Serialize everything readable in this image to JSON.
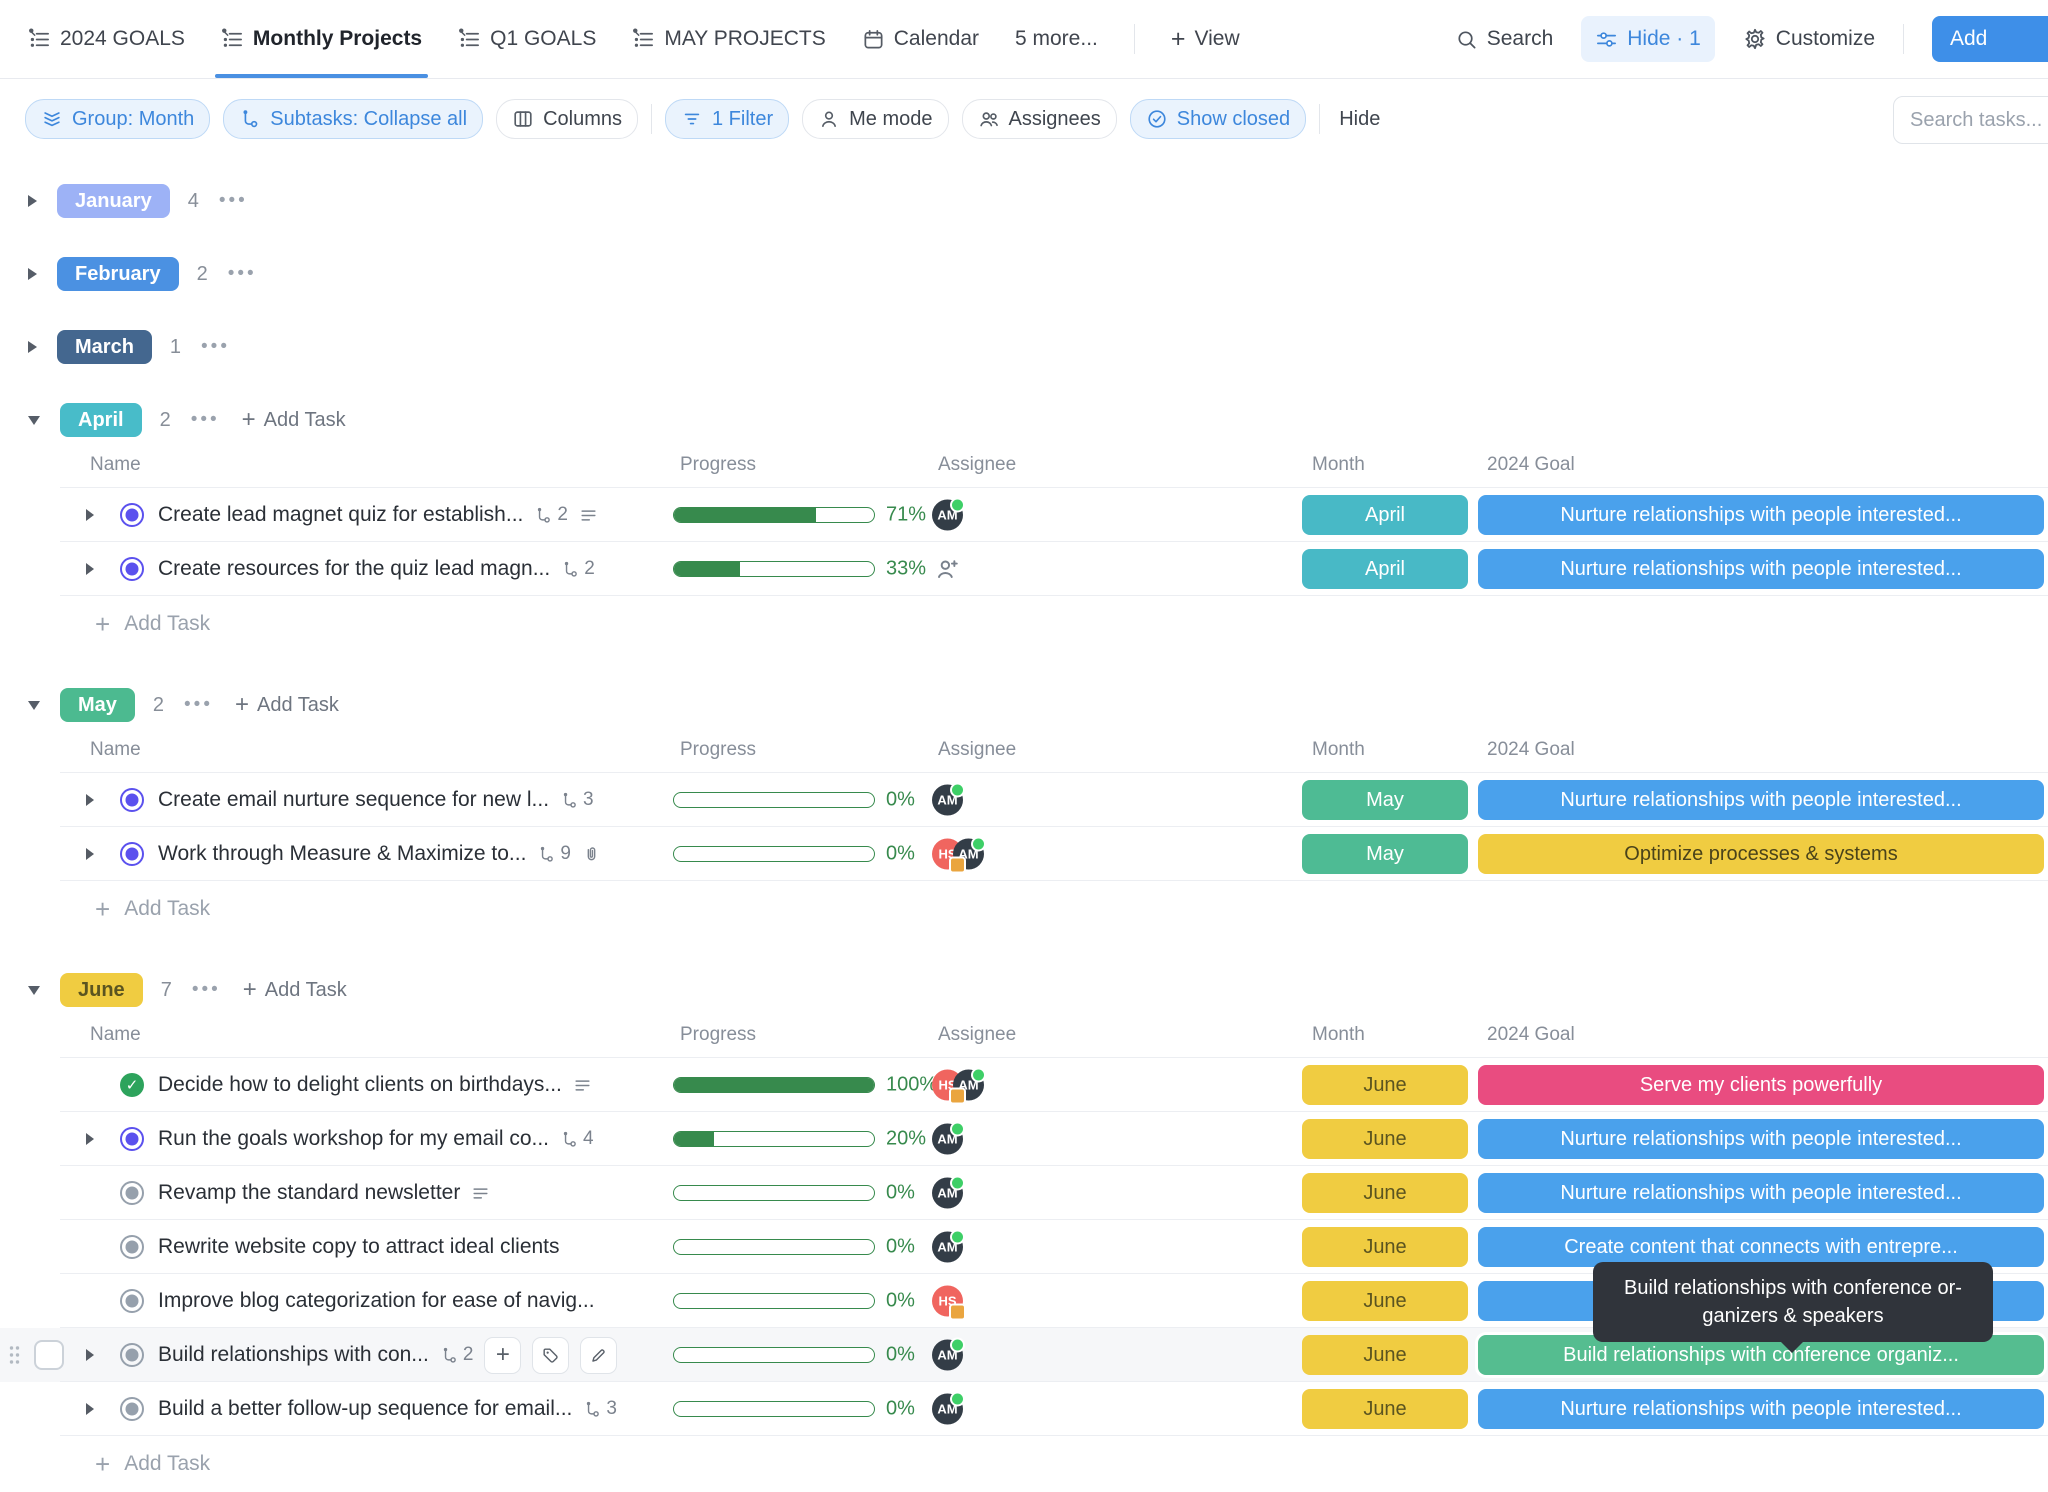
{
  "topbar": {
    "tabs": [
      {
        "label": "2024 GOALS",
        "icon": "list-pinned"
      },
      {
        "label": "Monthly Projects",
        "icon": "list-pinned",
        "active": true
      },
      {
        "label": "Q1 GOALS",
        "icon": "list-pinned"
      },
      {
        "label": "MAY PROJECTS",
        "icon": "list-pinned"
      },
      {
        "label": "Calendar",
        "icon": "calendar"
      },
      {
        "label": "5 more...",
        "icon": ""
      }
    ],
    "view_label": "View",
    "search_label": "Search",
    "hide_label": "Hide · 1",
    "customize_label": "Customize",
    "add_label": "Add"
  },
  "toolbar": {
    "pills": [
      {
        "label": "Group: Month",
        "icon": "group",
        "active": true
      },
      {
        "label": "Subtasks: Collapse all",
        "icon": "subtasks",
        "active": true
      },
      {
        "label": "Columns",
        "icon": "columns",
        "active": false
      },
      {
        "divider": true
      },
      {
        "label": "1 Filter",
        "icon": "filter",
        "active": true
      },
      {
        "label": "Me mode",
        "icon": "person",
        "active": false
      },
      {
        "label": "Assignees",
        "icon": "people",
        "active": false
      },
      {
        "label": "Show closed",
        "icon": "check-circle",
        "active": true
      },
      {
        "divider": true
      },
      {
        "label": "Hide",
        "plain": true
      }
    ],
    "search_placeholder": "Search tasks..."
  },
  "table": {
    "columns": [
      "Name",
      "Progress",
      "Assignee",
      "Month",
      "2024 Goal"
    ],
    "add_task_label": "Add Task"
  },
  "groups": [
    {
      "name": "January",
      "badge_bg": "#9DB2F6",
      "badge_fg": "#FFFFFF",
      "count": "4",
      "collapsed": true
    },
    {
      "name": "February",
      "badge_bg": "#4B91E2",
      "badge_fg": "#FFFFFF",
      "count": "2",
      "collapsed": true
    },
    {
      "name": "March",
      "badge_bg": "#44678F",
      "badge_fg": "#FFFFFF",
      "count": "1",
      "collapsed": true
    },
    {
      "name": "April",
      "badge_bg": "#48BCC9",
      "badge_fg": "#FFFFFF",
      "count": "2",
      "collapsed": false,
      "tasks": [
        {
          "name": "Create lead magnet quiz for establish...",
          "subtask_count": "2",
          "has_description": true,
          "has_arrow": true,
          "status": "inprogress",
          "progress": 71,
          "progress_label": "71%",
          "assignees": [
            {
              "initials": "AM",
              "bg": "#333D47",
              "presence": true
            }
          ],
          "month": "April",
          "month_bg": "#48B9C6",
          "month_fg": "#FFFFFF",
          "goal": {
            "label": "Nurture relationships with people interested...",
            "bg": "#4AA1EC",
            "fg": "#FFFFFF"
          }
        },
        {
          "name": "Create resources for the quiz lead magn...",
          "subtask_count": "2",
          "has_arrow": true,
          "status": "inprogress",
          "progress": 33,
          "progress_label": "33%",
          "assignee_empty": true,
          "assignees": [],
          "month": "April",
          "month_bg": "#48B9C6",
          "month_fg": "#FFFFFF",
          "goal": {
            "label": "Nurture relationships with people interested...",
            "bg": "#4AA1EC",
            "fg": "#FFFFFF"
          }
        }
      ]
    },
    {
      "name": "May",
      "badge_bg": "#4CBA90",
      "badge_fg": "#FFFFFF",
      "count": "2",
      "collapsed": false,
      "tasks": [
        {
          "name": "Create email nurture sequence for new l...",
          "subtask_count": "3",
          "has_arrow": true,
          "status": "inprogress",
          "progress": 0,
          "progress_label": "0%",
          "assignees": [
            {
              "initials": "AM",
              "bg": "#333D47",
              "presence": true
            }
          ],
          "month": "May",
          "month_bg": "#4EBB94",
          "month_fg": "#FFFFFF",
          "goal": {
            "label": "Nurture relationships with people interested...",
            "bg": "#4AA1EC",
            "fg": "#FFFFFF"
          }
        },
        {
          "name": "Work through Measure & Maximize to...",
          "subtask_count": "9",
          "has_attachment": true,
          "has_arrow": true,
          "status": "inprogress",
          "progress": 0,
          "progress_label": "0%",
          "assignees": [
            {
              "initials": "HS",
              "bg": "#F0655F",
              "badge": true
            },
            {
              "initials": "AM",
              "bg": "#333D47",
              "presence": true
            }
          ],
          "month": "May",
          "month_bg": "#4EBB94",
          "month_fg": "#FFFFFF",
          "goal": {
            "label": "Optimize processes & systems",
            "bg": "#F0CC41",
            "fg": "#4A431A"
          }
        }
      ]
    },
    {
      "name": "June",
      "badge_bg": "#F0CC41",
      "badge_fg": "#5B5420",
      "count": "7",
      "collapsed": false,
      "tasks": [
        {
          "name": "Decide how to delight clients on birthdays...",
          "has_description": true,
          "status": "done",
          "progress": 100,
          "progress_label": "100%",
          "assignees": [
            {
              "initials": "HS",
              "bg": "#F0655F",
              "badge": true
            },
            {
              "initials": "AM",
              "bg": "#333D47",
              "presence": true
            }
          ],
          "month": "June",
          "month_bg": "#F0CC41",
          "month_fg": "#5B5420",
          "goal": {
            "label": "Serve my clients powerfully",
            "bg": "#E94C80",
            "fg": "#FFFFFF"
          }
        },
        {
          "name": "Run the goals workshop for my email co...",
          "subtask_count": "4",
          "has_arrow": true,
          "status": "inprogress",
          "progress": 20,
          "progress_label": "20%",
          "assignees": [
            {
              "initials": "AM",
              "bg": "#333D47",
              "presence": true
            }
          ],
          "month": "June",
          "month_bg": "#F0CC41",
          "month_fg": "#5B5420",
          "goal": {
            "label": "Nurture relationships with people interested...",
            "bg": "#4AA1EC",
            "fg": "#FFFFFF"
          }
        },
        {
          "name": "Revamp the standard newsletter",
          "has_description": true,
          "status": "todo",
          "progress": 0,
          "progress_label": "0%",
          "assignees": [
            {
              "initials": "AM",
              "bg": "#333D47",
              "presence": true
            }
          ],
          "month": "June",
          "month_bg": "#F0CC41",
          "month_fg": "#5B5420",
          "goal": {
            "label": "Nurture relationships with people interested...",
            "bg": "#4AA1EC",
            "fg": "#FFFFFF"
          }
        },
        {
          "name": "Rewrite website copy to attract ideal clients",
          "status": "todo",
          "progress": 0,
          "progress_label": "0%",
          "assignees": [
            {
              "initials": "AM",
              "bg": "#333D47",
              "presence": true
            }
          ],
          "month": "June",
          "month_bg": "#F0CC41",
          "month_fg": "#5B5420",
          "goal": {
            "label": "Create content that connects with entrepre...",
            "bg": "#4AA1EC",
            "fg": "#FFFFFF"
          }
        },
        {
          "name": "Improve blog categorization for ease of navig...",
          "status": "todo",
          "progress": 0,
          "progress_label": "0%",
          "assignees": [
            {
              "initials": "HS",
              "bg": "#F0655F",
              "badge": true
            }
          ],
          "month": "June",
          "month_bg": "#F0CC41",
          "month_fg": "#5B5420",
          "goal": {
            "label": "",
            "bg": "#4AA1EC",
            "fg": "#FFFFFF"
          }
        },
        {
          "name": "Build relationships with con...",
          "subtask_count": "2",
          "has_arrow": true,
          "hovered": true,
          "status": "todo",
          "progress": 0,
          "progress_label": "0%",
          "assignees": [
            {
              "initials": "AM",
              "bg": "#333D47",
              "presence": true
            }
          ],
          "month": "June",
          "month_bg": "#F0CC41",
          "month_fg": "#5B5420",
          "goal": {
            "label": "Build relationships with conference organiz...",
            "bg": "#55BD90",
            "fg": "#FFFFFF"
          }
        },
        {
          "name": "Build a better follow-up sequence for email...",
          "subtask_count": "3",
          "has_arrow": true,
          "partial": true,
          "status": "todo",
          "progress": 0,
          "progress_label": "0%",
          "assignees": [
            {
              "initials": "AM",
              "bg": "#333D47",
              "presence": true
            }
          ],
          "month": "June",
          "month_bg": "#F0CC41",
          "month_fg": "#5B5420",
          "goal": {
            "label": "Nurture relationships with people interested...",
            "bg": "#4AA1EC",
            "fg": "#FFFFFF"
          }
        }
      ]
    }
  ],
  "tooltip": {
    "line1": "Build relationships with conference or-",
    "line2": "ganizers & speakers"
  }
}
